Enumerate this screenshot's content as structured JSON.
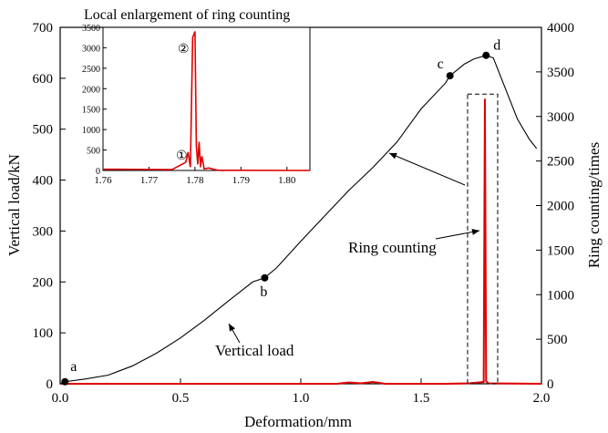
{
  "chart_data": [
    {
      "type": "line",
      "xlabel": "Deformation/mm",
      "ylabel_left": "Vertical load/kN",
      "ylabel_right": "Ring counting/times",
      "xlim": [
        0,
        2.0
      ],
      "ylim_left": [
        0,
        700
      ],
      "ylim_right": [
        0,
        4000
      ],
      "x_ticks": [
        "0.0",
        "0.5",
        "1.0",
        "1.5",
        "2.0"
      ],
      "y_left_ticks": [
        "0",
        "100",
        "200",
        "300",
        "400",
        "500",
        "600",
        "700"
      ],
      "y_right_ticks": [
        "0",
        "500",
        "1000",
        "1500",
        "2000",
        "2500",
        "3000",
        "3500",
        "4000"
      ],
      "series": [
        {
          "name": "Vertical load",
          "color": "#000000",
          "axis": "left",
          "x": [
            0,
            0.02,
            0.1,
            0.2,
            0.3,
            0.4,
            0.5,
            0.6,
            0.7,
            0.8,
            0.85,
            0.9,
            1.0,
            1.1,
            1.2,
            1.3,
            1.4,
            1.5,
            1.6,
            1.62,
            1.68,
            1.72,
            1.77,
            1.8,
            1.85,
            1.9,
            1.95,
            1.98
          ],
          "y": [
            0,
            4,
            9,
            17,
            35,
            60,
            90,
            125,
            163,
            200,
            208,
            228,
            280,
            330,
            380,
            425,
            475,
            540,
            590,
            605,
            628,
            638,
            645,
            640,
            580,
            520,
            480,
            462
          ]
        },
        {
          "name": "Ring counting",
          "color": "#e00000",
          "axis": "right",
          "x": [
            0,
            1.15,
            1.2,
            1.25,
            1.3,
            1.35,
            1.6,
            1.7,
            1.76,
            1.765,
            1.77,
            1.775,
            1.78,
            2.0
          ],
          "y": [
            0,
            0,
            15,
            5,
            20,
            0,
            0,
            5,
            20,
            3200,
            30,
            15,
            5,
            0
          ]
        }
      ],
      "annotations": [
        {
          "label": "a",
          "x": 0.02,
          "y": 4
        },
        {
          "label": "b",
          "x": 0.85,
          "y": 208
        },
        {
          "label": "c",
          "x": 1.62,
          "y": 605
        },
        {
          "label": "d",
          "x": 1.77,
          "y": 645
        }
      ],
      "callouts": {
        "vertical_load": "Vertical load",
        "ring_counting": "Ring counting"
      }
    },
    {
      "type": "line",
      "title": "Local enlargement of ring counting",
      "xlim": [
        1.76,
        1.805
      ],
      "ylim": [
        0,
        3500
      ],
      "x_ticks": [
        "1.76",
        "1.77",
        "1.78",
        "1.79",
        "1.80"
      ],
      "y_ticks": [
        "0",
        "500",
        "1000",
        "1500",
        "2000",
        "2500",
        "3000",
        "3500"
      ],
      "series": [
        {
          "name": "Ring counting",
          "color": "#e00000",
          "x": [
            1.76,
            1.77,
            1.775,
            1.778,
            1.7785,
            1.779,
            1.7795,
            1.78,
            1.7803,
            1.7806,
            1.7809,
            1.7812,
            1.7815,
            1.782,
            1.783,
            1.785,
            1.805
          ],
          "y": [
            30,
            25,
            20,
            200,
            450,
            80,
            3250,
            3400,
            600,
            150,
            700,
            80,
            350,
            40,
            60,
            5,
            0
          ]
        }
      ],
      "markers": [
        "①",
        "②"
      ]
    }
  ]
}
